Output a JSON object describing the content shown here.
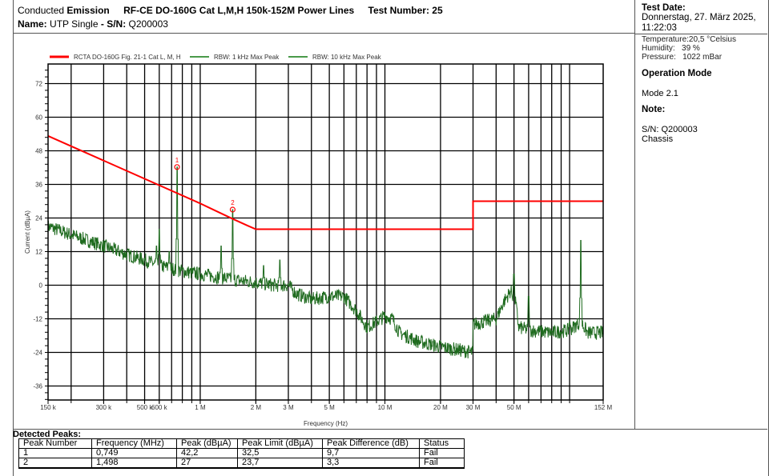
{
  "header": {
    "title_prefix": "Conducted",
    "title_bold": "Emission",
    "standard": "RF-CE DO-160G Cat L,M,H 150k-152M Power Lines",
    "test_number_label": "Test Number: 25",
    "name_label": "Name:",
    "name_value": "UTP Single",
    "sn_label": "- S/N:",
    "sn_value": "Q200003"
  },
  "right_panel": {
    "test_date_label": "Test Date:",
    "test_date_line1": "Donnerstag, 27. März 2025,",
    "test_date_line2": "11:22:03",
    "temperature": "Temperature:20,5 °Celsius",
    "humidity": "Humidity:   39 %",
    "pressure": "Pressure:   1022 mBar",
    "operation_mode_label": "Operation Mode",
    "operation_mode": "Mode 2.1",
    "note_label": "Note:",
    "note_line1": "S/N: Q200003",
    "note_line2": "Chassis"
  },
  "chart_data": {
    "type": "line",
    "xlabel": "Frequency (Hz)",
    "ylabel": "Current (dBµA)",
    "xscale": "log",
    "xlim_mhz": [
      0.15,
      152
    ],
    "ylim": [
      -41,
      79
    ],
    "yticks": [
      72,
      60,
      48,
      36,
      24,
      12,
      0,
      -12,
      -24,
      -36
    ],
    "xticks": [
      {
        "v": 0.15,
        "l": "150 k"
      },
      {
        "v": 0.3,
        "l": "300 k"
      },
      {
        "v": 0.5,
        "l": "500 k"
      },
      {
        "v": 0.6,
        "l": "600 k"
      },
      {
        "v": 1,
        "l": "1 M"
      },
      {
        "v": 2,
        "l": "2 M"
      },
      {
        "v": 3,
        "l": "3 M"
      },
      {
        "v": 5,
        "l": "5 M"
      },
      {
        "v": 10,
        "l": "10 M"
      },
      {
        "v": 20,
        "l": "20 M"
      },
      {
        "v": 30,
        "l": "30 M"
      },
      {
        "v": 50,
        "l": "50 M"
      },
      {
        "v": 152,
        "l": "152 M"
      }
    ],
    "grid": true,
    "legend": [
      {
        "name": "RCTA DO-160G Fig. 21-1 Cat L, M, H",
        "color": "#ff0000"
      },
      {
        "name": "RBW: 1 kHz Max Peak",
        "color": "#4a9a4a"
      },
      {
        "name": "RBW: 10 kHz Max Peak",
        "color": "#4a9a4a"
      }
    ],
    "legend_position": "top",
    "limit_line": {
      "name": "RCTA DO-160G Fig. 21-1 Cat L, M, H",
      "color": "#ff0000",
      "points": [
        [
          0.15,
          53.3
        ],
        [
          1.0,
          29.2
        ],
        [
          1.498,
          23.7
        ],
        [
          1.8,
          21.3
        ],
        [
          2.0,
          20
        ],
        [
          30,
          20
        ],
        [
          30,
          30
        ],
        [
          152,
          30
        ]
      ]
    },
    "measurement": {
      "name": "RBW: 10 kHz Max Peak",
      "color": "#1f6b1f",
      "envelope": [
        [
          0.15,
          21
        ],
        [
          0.2,
          18
        ],
        [
          0.3,
          14
        ],
        [
          0.4,
          11
        ],
        [
          0.5,
          9
        ],
        [
          0.6,
          7
        ],
        [
          0.8,
          5
        ],
        [
          1.0,
          4
        ],
        [
          1.5,
          2
        ],
        [
          2.0,
          1
        ],
        [
          2.5,
          0
        ],
        [
          3.0,
          0
        ],
        [
          3.3,
          -3
        ],
        [
          4.0,
          -5
        ],
        [
          5.0,
          -4
        ],
        [
          6.0,
          -4
        ],
        [
          7.0,
          -9
        ],
        [
          8.0,
          -15
        ],
        [
          9.0,
          -13
        ],
        [
          10.0,
          -11
        ],
        [
          11.0,
          -12
        ],
        [
          12.0,
          -17
        ],
        [
          15.0,
          -20
        ],
        [
          20.0,
          -22
        ],
        [
          29.9,
          -24
        ],
        [
          30.0,
          -14
        ],
        [
          40.0,
          -12
        ],
        [
          44.0,
          -6
        ],
        [
          48.0,
          -2
        ],
        [
          51.0,
          -6
        ],
        [
          53.0,
          -15
        ],
        [
          60.0,
          -16
        ],
        [
          80.0,
          -17
        ],
        [
          100.0,
          -16
        ],
        [
          115.0,
          -13
        ],
        [
          125.0,
          -17
        ],
        [
          152.0,
          -17
        ]
      ],
      "spikes": [
        [
          0.58,
          14
        ],
        [
          0.6,
          20
        ],
        [
          0.749,
          42.2
        ],
        [
          0.68,
          12
        ],
        [
          1.3,
          14
        ],
        [
          1.498,
          27
        ],
        [
          2.2,
          7
        ],
        [
          2.7,
          9
        ],
        [
          50.0,
          4
        ],
        [
          60.0,
          -4
        ],
        [
          100.0,
          -13
        ],
        [
          115.0,
          16
        ]
      ]
    },
    "markers": [
      {
        "label": "1",
        "freq_mhz": 0.749,
        "value": 42.2
      },
      {
        "label": "2",
        "freq_mhz": 1.498,
        "value": 27
      }
    ]
  },
  "peaks": {
    "title": "Detected Peaks:",
    "columns": [
      "Peak Number",
      "Frequency (MHz)",
      "Peak (dBµA)",
      "Peak Limit (dBµA)",
      "Peak Difference (dB)",
      "Status"
    ],
    "rows": [
      [
        "1",
        "0,749",
        "42,2",
        "32,5",
        "9,7",
        "Fail"
      ],
      [
        "2",
        "1,498",
        "27",
        "23,7",
        "3,3",
        "Fail"
      ]
    ]
  }
}
